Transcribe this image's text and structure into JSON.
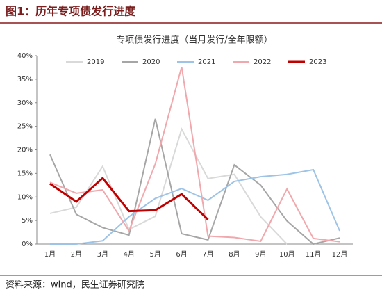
{
  "header": {
    "title": "图1：历年专项债发行进度"
  },
  "chart_data": {
    "type": "line",
    "title": "专项债发行进度（当月发行/全年限额）",
    "categories": [
      "1月",
      "2月",
      "3月",
      "4月",
      "5月",
      "6月",
      "7月",
      "8月",
      "9月",
      "10月",
      "11月",
      "12月"
    ],
    "series": [
      {
        "name": "2019",
        "color": "#d9d9d9",
        "width": 2,
        "values": [
          6.5,
          7.8,
          16.5,
          3.1,
          5.9,
          24.4,
          13.9,
          14.8,
          5.8,
          0,
          null,
          null
        ]
      },
      {
        "name": "2020",
        "color": "#a6a6a6",
        "width": 2,
        "values": [
          19,
          6.3,
          3.5,
          1.9,
          26.6,
          2.2,
          0.9,
          16.8,
          12.5,
          4.9,
          0,
          1.3
        ]
      },
      {
        "name": "2021",
        "color": "#9dc3e6",
        "width": 2,
        "values": [
          0,
          0,
          0.7,
          5.8,
          9.7,
          11.8,
          9.3,
          13.3,
          14.3,
          14.8,
          15.8,
          2.8
        ]
      },
      {
        "name": "2022",
        "color": "#f0a8ad",
        "width": 2,
        "values": [
          13.1,
          10.8,
          11.5,
          2.8,
          17,
          37.6,
          1.7,
          1.4,
          0.6,
          11.7,
          1.2,
          0.5
        ]
      },
      {
        "name": "2023",
        "color": "#c00000",
        "width": 3,
        "values": [
          12.8,
          9.0,
          14.0,
          7.0,
          7.2,
          10.6,
          5.2,
          null,
          null,
          null,
          null,
          null
        ]
      }
    ],
    "ylim": [
      0,
      40
    ],
    "yticks": [
      {
        "value": 0,
        "label": "0%"
      },
      {
        "value": 5,
        "label": "5%"
      },
      {
        "value": 10,
        "label": "10%"
      },
      {
        "value": 15,
        "label": "15%"
      },
      {
        "value": 20,
        "label": "20%"
      },
      {
        "value": 25,
        "label": "25%"
      },
      {
        "value": 30,
        "label": "30%"
      },
      {
        "value": 35,
        "label": "35%"
      },
      {
        "value": 40,
        "label": "40%"
      }
    ],
    "legend": "top"
  },
  "footer": {
    "source": "资料来源：wind，民生证券研究院"
  }
}
